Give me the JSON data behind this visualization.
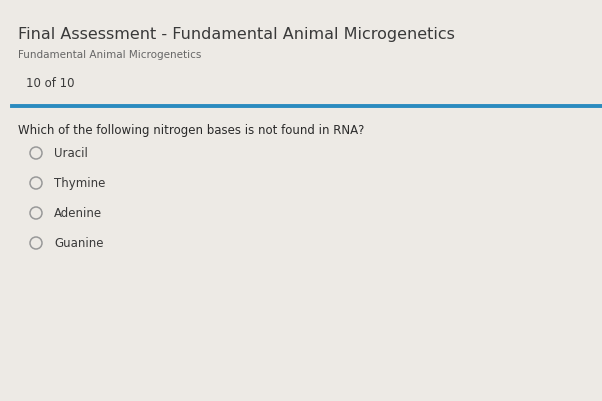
{
  "title": "Final Assessment - Fundamental Animal Microgenetics",
  "subtitle": "Fundamental Animal Microgenetics",
  "progress": "10 of 10",
  "question": "Which of the following nitrogen bases is not found in RNA?",
  "options": [
    "Uracil",
    "Thymine",
    "Adenine",
    "Guanine"
  ],
  "bg_color": "#edeae5",
  "title_color": "#3a3a3a",
  "subtitle_color": "#666666",
  "progress_color": "#3a3a3a",
  "question_color": "#2a2a2a",
  "option_color": "#3a3a3a",
  "divider_color": "#2b8bbf",
  "circle_color": "#999999",
  "title_fontsize": 11.5,
  "subtitle_fontsize": 7.5,
  "progress_fontsize": 8.5,
  "question_fontsize": 8.5,
  "option_fontsize": 8.5
}
